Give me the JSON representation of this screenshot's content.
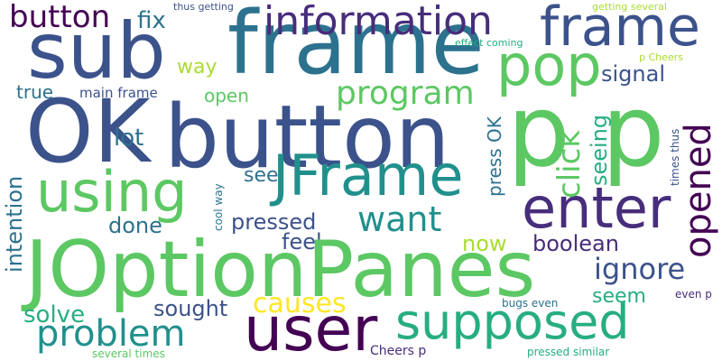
{
  "words": {
    "sub": "sub",
    "frame_big": "frame",
    "information": "information",
    "frame_right": "frame",
    "button_top": "button",
    "fix": "fix",
    "thus_getting": "thus getting",
    "getting_several": "getting several",
    "effect_coming": "effect coming",
    "pop": "pop",
    "p_cheers": "p Cheers",
    "way": "way",
    "signal": "signal",
    "program": "program",
    "true": "true",
    "main_frame": "main frame",
    "open": "open",
    "ok": "OK",
    "button_big": "button",
    "pp": "p p",
    "click": "click",
    "seeing": "seeing",
    "opened": "opened",
    "times_thus": "times thus",
    "lot": "lot",
    "intention": "intention",
    "using": "using",
    "see": "see",
    "jframe": "JFrame",
    "press_ok": "press OK",
    "enter": "enter",
    "cool_way": "cool way",
    "done": "done",
    "pressed": "pressed",
    "want": "want",
    "feel": "feel",
    "now": "now",
    "boolean": "boolean",
    "joptionpanes": "JOptionPanes",
    "ignore": "ignore",
    "seem": "seem",
    "even_p": "even p",
    "causes": "causes",
    "sought": "sought",
    "bugs_even": "bugs even",
    "solve": "solve",
    "problem": "problem",
    "user": "user",
    "supposed": "supposed",
    "cheers_p": "Cheers p",
    "several_times": "several times",
    "pressed_similar": "pressed similar"
  },
  "palette": {
    "dark_purple": "#440154",
    "indigo": "#472d7b",
    "blue_purple": "#3b528b",
    "steel_blue": "#2c728e",
    "teal": "#21908d",
    "sea_green": "#27ad81",
    "green": "#5cc863",
    "lime": "#aadc32",
    "yellow": "#fde725"
  }
}
